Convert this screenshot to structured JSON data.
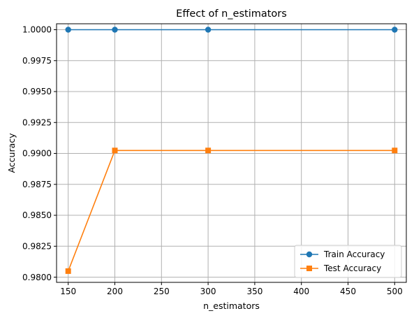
{
  "chart_data": {
    "type": "line",
    "title": "Effect of n_estimators",
    "xlabel": "n_estimators",
    "ylabel": "Accuracy",
    "x": [
      150,
      200,
      300,
      500
    ],
    "xlim": [
      137.5,
      512.5
    ],
    "ylim": [
      0.97958,
      1.00048
    ],
    "xticks": [
      150,
      200,
      250,
      300,
      350,
      400,
      450,
      500
    ],
    "xtick_labels": [
      "150",
      "200",
      "250",
      "300",
      "350",
      "400",
      "450",
      "500"
    ],
    "yticks": [
      0.98,
      0.9825,
      0.985,
      0.9875,
      0.99,
      0.9925,
      0.995,
      0.9975,
      1.0
    ],
    "ytick_labels": [
      "0.9800",
      "0.9825",
      "0.9850",
      "0.9875",
      "0.9900",
      "0.9925",
      "0.9950",
      "0.9975",
      "1.0000"
    ],
    "grid": true,
    "legend_position": "lower-right",
    "series": [
      {
        "name": "Train Accuracy",
        "values": [
          1.0,
          1.0,
          1.0,
          1.0
        ],
        "color": "#1f77b4",
        "marker": "circle"
      },
      {
        "name": "Test Accuracy",
        "values": [
          0.98049,
          0.99024,
          0.99024,
          0.99024
        ],
        "color": "#ff7f0e",
        "marker": "square"
      }
    ]
  }
}
